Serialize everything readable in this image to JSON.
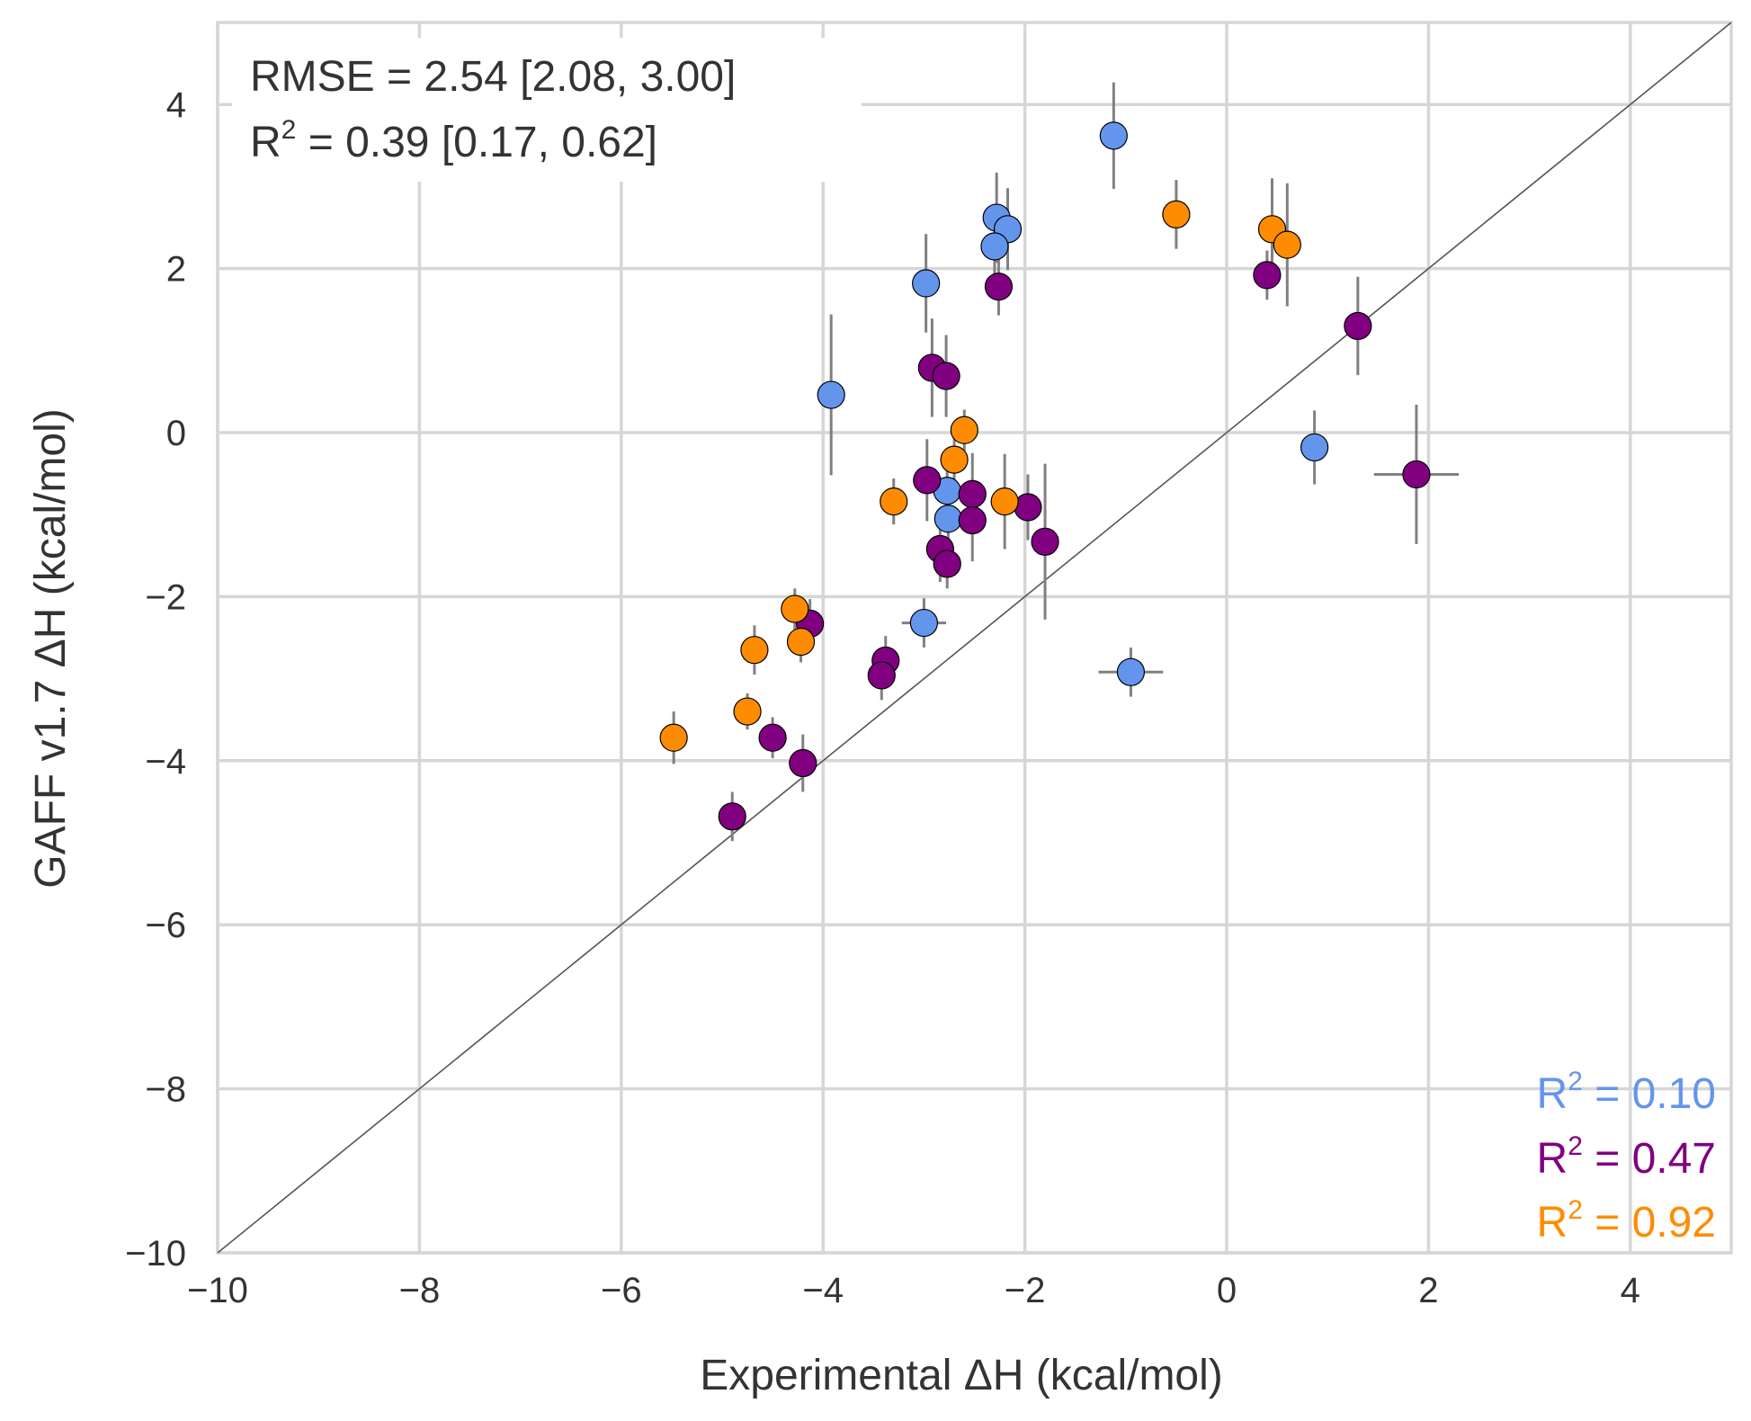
{
  "chart_data": {
    "type": "scatter",
    "xlabel": "Experimental ΔH (kcal/mol)",
    "ylabel": "GAFF v1.7 ΔH (kcal/mol)",
    "xlim": [
      -10,
      5
    ],
    "ylim": [
      -10,
      5
    ],
    "xticks": [
      -10,
      -8,
      -6,
      -4,
      -2,
      0,
      2,
      4
    ],
    "yticks": [
      -10,
      -8,
      -6,
      -4,
      -2,
      0,
      2,
      4
    ],
    "xtick_labels": [
      "−10",
      "−8",
      "−6",
      "−4",
      "−2",
      "0",
      "2",
      "4"
    ],
    "ytick_labels": [
      "−10",
      "−8",
      "−6",
      "−4",
      "−2",
      "0",
      "2",
      "4"
    ],
    "grid": true,
    "identity_line": true,
    "stats": {
      "rmse_label": "RMSE = 2.54 [2.08, 3.00]",
      "r2_prefix": "R",
      "r2_sup": "2",
      "r2_value": " = 0.39 [0.17, 0.62]"
    },
    "series": [
      {
        "name": "blue",
        "color": "#6495ED",
        "r2_prefix": "R",
        "r2_sup": "2",
        "r2_value": " = 0.10",
        "points": [
          {
            "x": -1.12,
            "y": 3.62,
            "xerr": 0,
            "yerr": 0.65
          },
          {
            "x": -2.28,
            "y": 2.62,
            "xerr": 0,
            "yerr": 0.55
          },
          {
            "x": -2.17,
            "y": 2.48,
            "xerr": 0,
            "yerr": 0.5
          },
          {
            "x": -2.3,
            "y": 2.27,
            "xerr": 0,
            "yerr": 0.35
          },
          {
            "x": -2.98,
            "y": 1.82,
            "xerr": 0,
            "yerr": 0.6
          },
          {
            "x": -3.92,
            "y": 0.46,
            "xerr": 0,
            "yerr": 0.98
          },
          {
            "x": 0.87,
            "y": -0.18,
            "xerr": 0,
            "yerr": 0.45
          },
          {
            "x": -2.77,
            "y": -0.71,
            "xerr": 0,
            "yerr": 0.35
          },
          {
            "x": -2.76,
            "y": -1.05,
            "xerr": 0,
            "yerr": 0.3
          },
          {
            "x": -3.0,
            "y": -2.32,
            "xerr": 0.22,
            "yerr": 0.3
          },
          {
            "x": -0.95,
            "y": -2.92,
            "xerr": 0.32,
            "yerr": 0.3
          }
        ]
      },
      {
        "name": "purple",
        "color": "#800080",
        "r2_prefix": "R",
        "r2_sup": "2",
        "r2_value": " = 0.47",
        "points": [
          {
            "x": -2.26,
            "y": 1.78,
            "xerr": 0,
            "yerr": 0.35
          },
          {
            "x": 0.4,
            "y": 1.92,
            "xerr": 0,
            "yerr": 0.3
          },
          {
            "x": 1.3,
            "y": 1.3,
            "xerr": 0,
            "yerr": 0.6
          },
          {
            "x": -2.92,
            "y": 0.79,
            "xerr": 0,
            "yerr": 0.6
          },
          {
            "x": -2.78,
            "y": 0.69,
            "xerr": 0,
            "yerr": 0.5
          },
          {
            "x": 1.88,
            "y": -0.51,
            "xerr": 0.42,
            "yerr": 0.85
          },
          {
            "x": -2.97,
            "y": -0.58,
            "xerr": 0,
            "yerr": 0.5
          },
          {
            "x": -2.52,
            "y": -0.75,
            "xerr": 0,
            "yerr": 0.5
          },
          {
            "x": -2.52,
            "y": -1.07,
            "xerr": 0,
            "yerr": 0.5
          },
          {
            "x": -1.97,
            "y": -0.91,
            "xerr": 0,
            "yerr": 0.4
          },
          {
            "x": -1.8,
            "y": -1.33,
            "xerr": 0,
            "yerr": 0.95
          },
          {
            "x": -2.84,
            "y": -1.42,
            "xerr": 0,
            "yerr": 0.4
          },
          {
            "x": -2.77,
            "y": -1.6,
            "xerr": 0,
            "yerr": 0.3
          },
          {
            "x": -4.13,
            "y": -2.33,
            "xerr": 0,
            "yerr": 0.3
          },
          {
            "x": -3.38,
            "y": -2.78,
            "xerr": 0,
            "yerr": 0.3
          },
          {
            "x": -3.42,
            "y": -2.96,
            "xerr": 0,
            "yerr": 0.3
          },
          {
            "x": -4.5,
            "y": -3.72,
            "xerr": 0,
            "yerr": 0.25
          },
          {
            "x": -4.2,
            "y": -4.03,
            "xerr": 0,
            "yerr": 0.35
          },
          {
            "x": -4.9,
            "y": -4.68,
            "xerr": 0,
            "yerr": 0.3
          }
        ]
      },
      {
        "name": "orange",
        "color": "#FF8C00",
        "r2_prefix": "R",
        "r2_sup": "2",
        "r2_value": " = 0.92",
        "points": [
          {
            "x": -0.5,
            "y": 2.66,
            "xerr": 0,
            "yerr": 0.42
          },
          {
            "x": 0.45,
            "y": 2.48,
            "xerr": 0,
            "yerr": 0.62
          },
          {
            "x": 0.6,
            "y": 2.29,
            "xerr": 0,
            "yerr": 0.75
          },
          {
            "x": -2.6,
            "y": 0.03,
            "xerr": 0,
            "yerr": 0.25
          },
          {
            "x": -2.7,
            "y": -0.33,
            "xerr": 0,
            "yerr": 0.35
          },
          {
            "x": -3.3,
            "y": -0.84,
            "xerr": 0,
            "yerr": 0.28
          },
          {
            "x": -2.2,
            "y": -0.84,
            "xerr": 0,
            "yerr": 0.58
          },
          {
            "x": -4.28,
            "y": -2.15,
            "xerr": 0,
            "yerr": 0.25
          },
          {
            "x": -4.22,
            "y": -2.55,
            "xerr": 0,
            "yerr": 0.25
          },
          {
            "x": -4.68,
            "y": -2.65,
            "xerr": 0,
            "yerr": 0.3
          },
          {
            "x": -4.75,
            "y": -3.4,
            "xerr": 0,
            "yerr": 0.22
          },
          {
            "x": -5.48,
            "y": -3.72,
            "xerr": 0,
            "yerr": 0.32
          }
        ]
      }
    ]
  }
}
